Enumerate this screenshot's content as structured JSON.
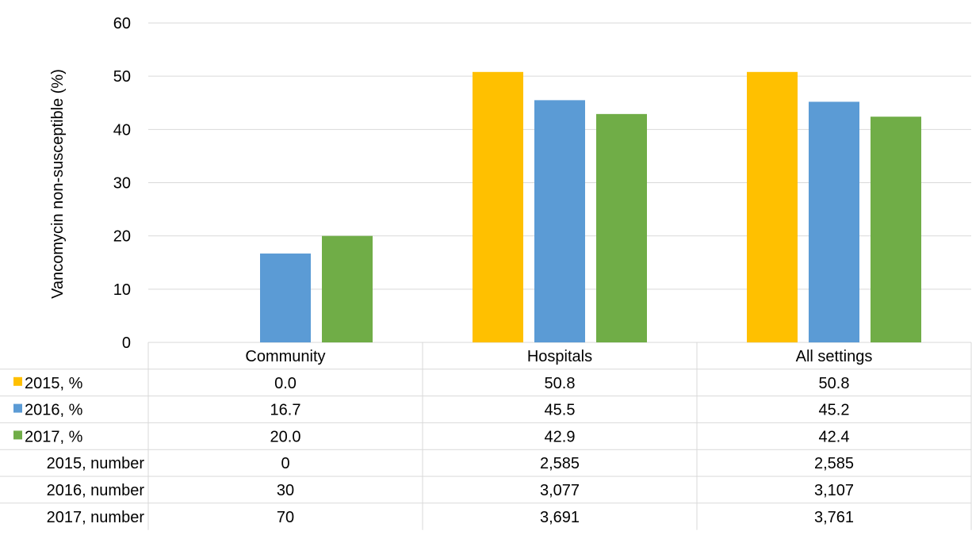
{
  "chart_data": {
    "type": "bar",
    "ylabel": "Vancomycin non-susceptible (%)",
    "ylim": [
      0,
      60
    ],
    "yticks": [
      0,
      10,
      20,
      30,
      40,
      50,
      60
    ],
    "grid": true,
    "categories": [
      "Community",
      "Hospitals",
      "All settings"
    ],
    "series": [
      {
        "name": "2015, %",
        "color": "#FFC000",
        "values": [
          0.0,
          50.8,
          50.8
        ]
      },
      {
        "name": "2016, %",
        "color": "#5B9BD5",
        "values": [
          16.7,
          45.5,
          45.2
        ]
      },
      {
        "name": "2017, %",
        "color": "#70AD47",
        "values": [
          20.0,
          42.9,
          42.4
        ]
      }
    ],
    "table": {
      "rows": [
        {
          "label": "2015, %",
          "legend_color": "#FFC000",
          "cells": [
            "0.0",
            "50.8",
            "50.8"
          ]
        },
        {
          "label": "2016, %",
          "legend_color": "#5B9BD5",
          "cells": [
            "16.7",
            "45.5",
            "45.2"
          ]
        },
        {
          "label": "2017, %",
          "legend_color": "#70AD47",
          "cells": [
            "20.0",
            "42.9",
            "42.4"
          ]
        },
        {
          "label": "2015, number",
          "cells": [
            "0",
            "2,585",
            "2,585"
          ]
        },
        {
          "label": "2016, number",
          "cells": [
            "30",
            "3,077",
            "3,107"
          ]
        },
        {
          "label": "2017, number",
          "cells": [
            "70",
            "3,691",
            "3,761"
          ]
        }
      ]
    }
  }
}
